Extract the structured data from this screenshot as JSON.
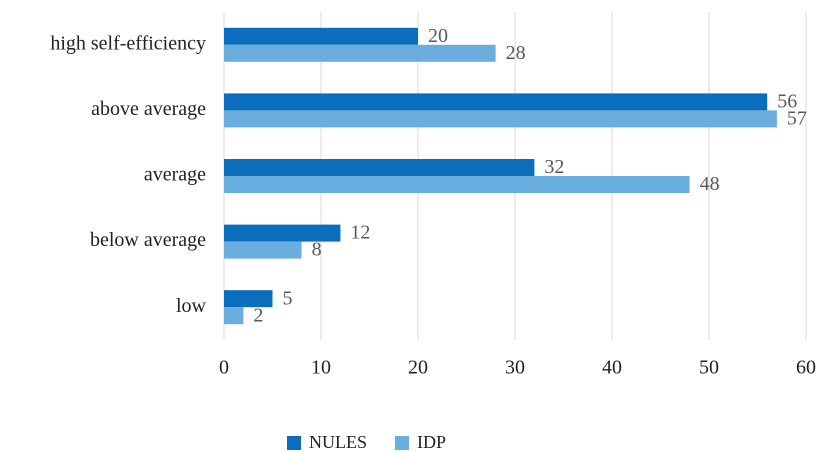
{
  "chart_data": {
    "type": "bar",
    "orientation": "horizontal",
    "categories": [
      "high self-efficiency",
      "above average",
      "average",
      "below average",
      "low"
    ],
    "series": [
      {
        "name": "NULES",
        "color": "#0a6ebd",
        "values": [
          20,
          56,
          32,
          12,
          5
        ]
      },
      {
        "name": "IDP",
        "color": "#6aaee0",
        "values": [
          28,
          57,
          48,
          8,
          2
        ]
      }
    ],
    "xlim": [
      0,
      60
    ],
    "xticks": [
      0,
      10,
      20,
      30,
      40,
      50,
      60
    ],
    "grid": true,
    "legend": "bottom"
  }
}
